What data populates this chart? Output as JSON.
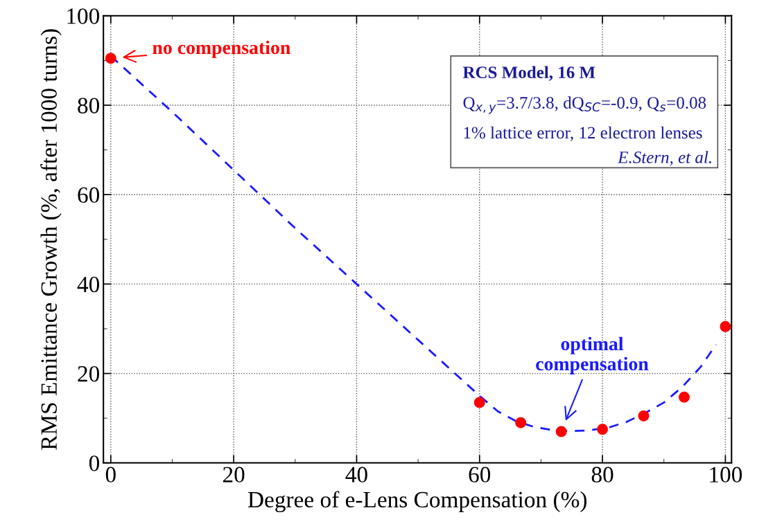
{
  "chart_data": {
    "type": "scatter",
    "xlabel": "Degree of e-Lens Compensation (%)",
    "ylabel": "RMS Emittance Growth (%, after 1000 turns)",
    "xlim": [
      -1.2,
      101
    ],
    "xticks": [
      0,
      20,
      40,
      60,
      80,
      100
    ],
    "ylim": [
      0,
      100
    ],
    "yticks": [
      0,
      20,
      40,
      60,
      80,
      100
    ],
    "grid": true,
    "series": [
      {
        "type": "line",
        "color": "#1a1aff",
        "line_style": "dashed",
        "marker": "none",
        "x": [
          0,
          10,
          20,
          30,
          40,
          50,
          60,
          63,
          66,
          69,
          72,
          75,
          78,
          81,
          84,
          87,
          90,
          93,
          96,
          98.5
        ],
        "values": [
          91,
          78.5,
          65.5,
          52.5,
          40,
          27.5,
          15,
          11.5,
          9.3,
          8,
          7.3,
          7.1,
          7.3,
          7.9,
          9.2,
          11.2,
          13.5,
          17,
          21.5,
          26.5
        ]
      },
      {
        "color": "#ff0000",
        "marker": "circle",
        "x": [
          0,
          60,
          66.7,
          73.3,
          80,
          86.7,
          93.3,
          100
        ],
        "values": [
          90.5,
          13.5,
          9,
          7,
          7.5,
          10.5,
          14.7,
          30.5
        ]
      }
    ],
    "annotations": [
      {
        "text": "no compensation",
        "x": 0,
        "y": 90.5
      },
      {
        "text": "optimal\ncompensation",
        "x": 73.3,
        "y": 7
      },
      "RCS Model, 16 M",
      "Q$_{x,y}$=3.7/3.8, dQ$_{SC}$=-0.9, Q$_{s}$=0.08",
      "1% lattice error, 12 electron lenses",
      "E.Stern, et al."
    ]
  }
}
